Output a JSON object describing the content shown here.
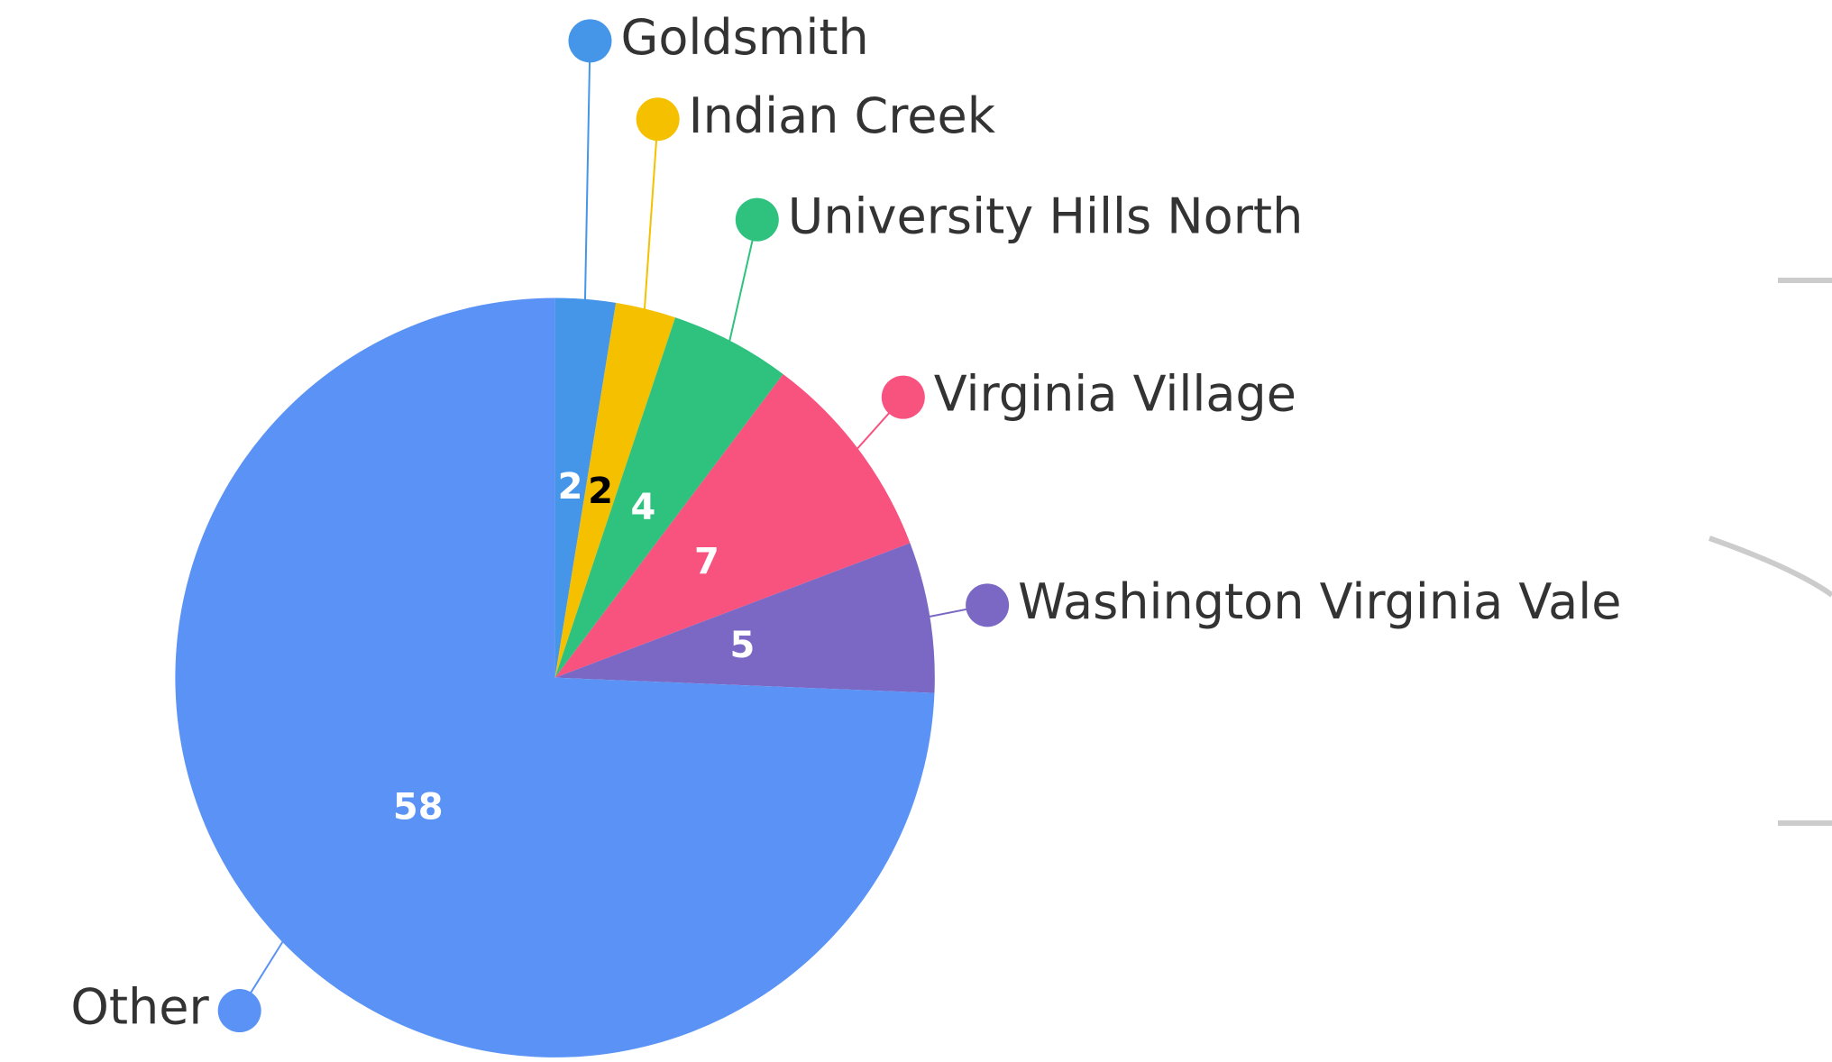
{
  "chart_data": {
    "type": "pie",
    "categories": [
      "Goldsmith",
      "Indian Creek",
      "University Hills North",
      "Virginia Village",
      "Washington Virginia Vale",
      "Other"
    ],
    "values": [
      2,
      2,
      4,
      7,
      5,
      58
    ],
    "colors": [
      "#4596e8",
      "#f5c000",
      "#2ec27e",
      "#f8527f",
      "#7b68c4",
      "#5a93f5"
    ],
    "label_colors": [
      "#ffffff",
      "#000000",
      "#ffffff",
      "#ffffff",
      "#ffffff",
      "#ffffff"
    ]
  }
}
